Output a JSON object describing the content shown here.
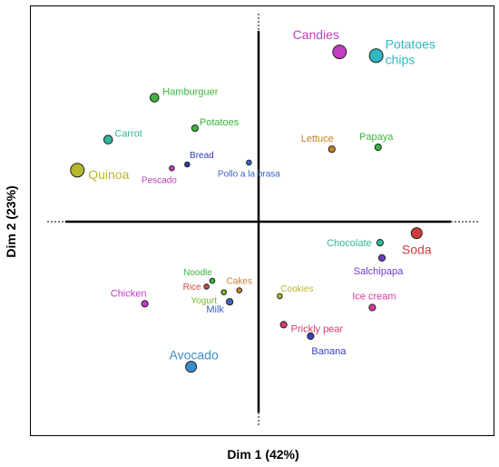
{
  "chart_data": {
    "type": "scatter",
    "title": "",
    "xlabel": "Dim 1 (42%)",
    "ylabel": "Dim 2 (23%)",
    "xlim": [
      -1,
      1
    ],
    "ylim": [
      -1,
      1
    ],
    "grid": false,
    "legend": "none",
    "points": [
      {
        "label": "Candies",
        "x": 0.42,
        "y": 0.89,
        "color": "#c43cc4",
        "size": "large"
      },
      {
        "label": "Potatoes chips",
        "x": 0.61,
        "y": 0.87,
        "color": "#2fb8c4",
        "size": "large"
      },
      {
        "label": "Hamburguer",
        "x": -0.54,
        "y": 0.65,
        "color": "#3cb53c",
        "size": "medium"
      },
      {
        "label": "Potatoes",
        "x": -0.33,
        "y": 0.49,
        "color": "#3cb53c",
        "size": "small"
      },
      {
        "label": "Carrot",
        "x": -0.78,
        "y": 0.43,
        "color": "#2fb89c",
        "size": "medium"
      },
      {
        "label": "Lettuce",
        "x": 0.38,
        "y": 0.38,
        "color": "#c8822c",
        "size": "small"
      },
      {
        "label": "Papaya",
        "x": 0.62,
        "y": 0.39,
        "color": "#3cb53c",
        "size": "small"
      },
      {
        "label": "Bread",
        "x": -0.37,
        "y": 0.3,
        "color": "#2c3cb0",
        "size": "tiny"
      },
      {
        "label": "Pollo a la brasa",
        "x": -0.05,
        "y": 0.31,
        "color": "#3c64c8",
        "size": "tiny"
      },
      {
        "label": "Quinoa",
        "x": -0.94,
        "y": 0.27,
        "color": "#b4b82c",
        "size": "large"
      },
      {
        "label": "Pescado",
        "x": -0.45,
        "y": 0.28,
        "color": "#c43cc4",
        "size": "tiny"
      },
      {
        "label": "Chocolate",
        "x": 0.63,
        "y": -0.11,
        "color": "#2fb89c",
        "size": "small"
      },
      {
        "label": "Soda",
        "x": 0.82,
        "y": -0.06,
        "color": "#cc3c3c",
        "size": "medium-large"
      },
      {
        "label": "Salchipapa",
        "x": 0.64,
        "y": -0.19,
        "color": "#6c3cc8",
        "size": "small"
      },
      {
        "label": "Noodle",
        "x": -0.24,
        "y": -0.31,
        "color": "#3cb53c",
        "size": "tiny"
      },
      {
        "label": "Rice",
        "x": -0.27,
        "y": -0.34,
        "color": "#cc4c3c",
        "size": "tiny"
      },
      {
        "label": "Cakes",
        "x": -0.1,
        "y": -0.36,
        "color": "#c8822c",
        "size": "tiny"
      },
      {
        "label": "Yogurt",
        "x": -0.18,
        "y": -0.37,
        "color": "#7cb82c",
        "size": "tiny"
      },
      {
        "label": "Cookies",
        "x": 0.11,
        "y": -0.39,
        "color": "#b4b82c",
        "size": "tiny"
      },
      {
        "label": "Chicken",
        "x": -0.59,
        "y": -0.43,
        "color": "#c43cc4",
        "size": "small"
      },
      {
        "label": "Milk",
        "x": -0.15,
        "y": -0.42,
        "color": "#3c64c8",
        "size": "small"
      },
      {
        "label": "Ice cream",
        "x": 0.59,
        "y": -0.45,
        "color": "#d43c9c",
        "size": "small"
      },
      {
        "label": "Prickly pear",
        "x": 0.13,
        "y": -0.54,
        "color": "#d43c6c",
        "size": "small"
      },
      {
        "label": "Banana",
        "x": 0.27,
        "y": -0.6,
        "color": "#3c3cc4",
        "size": "small"
      },
      {
        "label": "Avocado",
        "x": -0.35,
        "y": -0.76,
        "color": "#3c8cc8",
        "size": "medium-large"
      }
    ]
  }
}
